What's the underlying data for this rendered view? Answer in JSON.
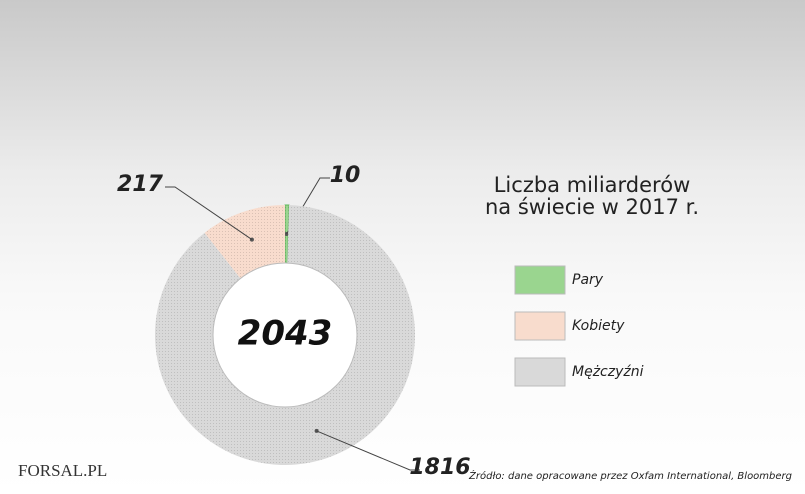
{
  "chart_data": {
    "type": "donut",
    "title": [
      "Liczba miliarderów",
      "na świecie w 2017 r."
    ],
    "total": 2043,
    "series": [
      {
        "name": "Pary",
        "color": "#9ad58f",
        "values": [
          10
        ]
      },
      {
        "name": "Kobiety",
        "color": "#f8dccd",
        "values": [
          217
        ]
      },
      {
        "name": "Mężczyźni",
        "color": "#d9d9d9",
        "values": [
          1816
        ]
      }
    ],
    "source": "Źródło: dane opracowane przez Oxfam International, Bloomberg",
    "logo": "FORSAL.PL"
  }
}
